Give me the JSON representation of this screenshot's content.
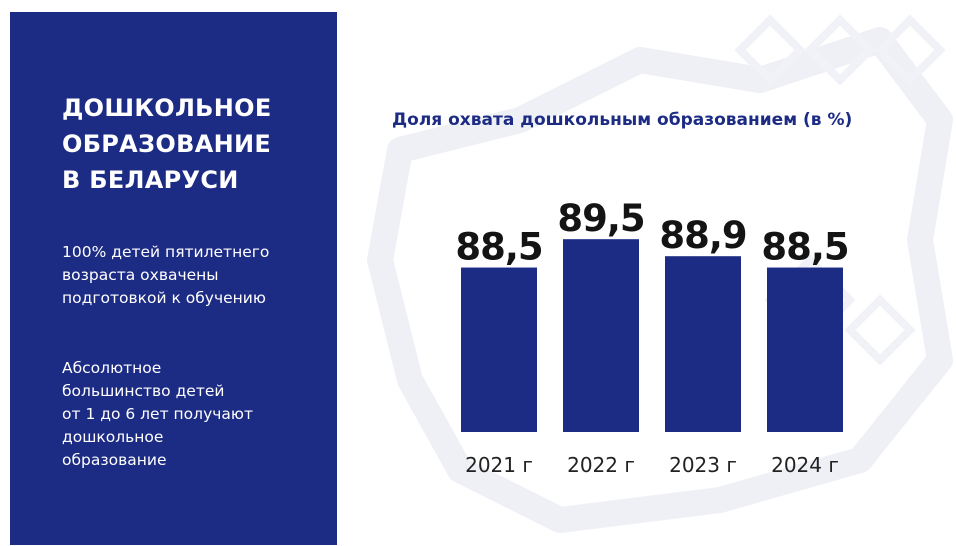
{
  "panel": {
    "title_lines": [
      "ДОШКОЛЬНОЕ",
      "ОБРАЗОВАНИЕ",
      "В БЕЛАРУСИ"
    ],
    "text1_lines": [
      "100% детей пятилетнего",
      "возраста охвачены",
      "подготовкой к обучению"
    ],
    "text2_lines": [
      "Абсолютное",
      "большинство детей",
      "от 1 до 6 лет получают",
      "дошкольное",
      "образование"
    ]
  },
  "colors": {
    "panel_bg": "#1c2b84",
    "bar": "#1c2b84",
    "title": "#1c2b84"
  },
  "chart_data": {
    "type": "bar",
    "title": "Доля охвата дошкольным образованием (в %)",
    "categories": [
      "2021 г",
      "2022 г",
      "2023 г",
      "2024 г"
    ],
    "values": [
      88.5,
      89.5,
      88.9,
      88.5
    ],
    "value_labels": [
      "88,5",
      "89,5",
      "88,9",
      "88,5"
    ],
    "xlabel": "",
    "ylabel": "",
    "ylim": [
      82.7,
      90.6
    ],
    "grid": false,
    "legend": "none"
  }
}
